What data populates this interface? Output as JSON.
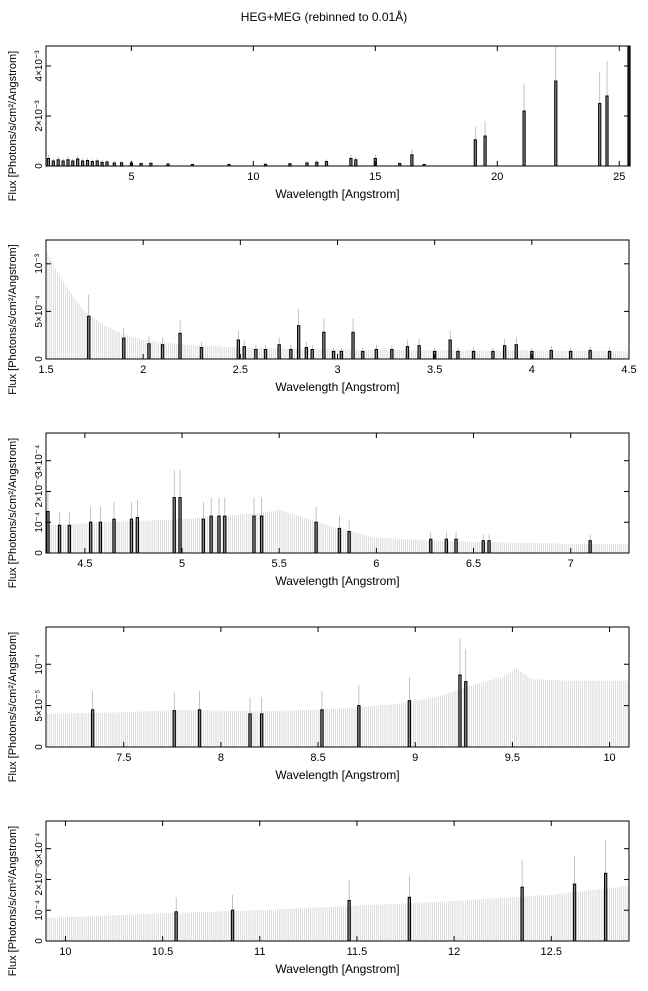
{
  "figure": {
    "title": "HEG+MEG (rebinned to 0.01Å)"
  },
  "chart_data": [
    {
      "type": "bar",
      "xlabel": "Wavelength [Angstrom]",
      "ylabel": "Flux [Photons/s/cm²/Angstrom]",
      "xlim": [
        1.5,
        25.4
      ],
      "ylim": [
        0,
        0.0048
      ],
      "xticks": [
        5,
        10,
        15,
        20,
        25
      ],
      "yticks": [
        {
          "value": 0,
          "label": "0"
        },
        {
          "value": 0.002,
          "label": "2×10⁻³"
        },
        {
          "value": 0.004,
          "label": "4×10⁻³"
        }
      ],
      "background_model": {
        "x": [
          1.5,
          25.4
        ],
        "y": [
          0.0,
          0.0
        ]
      },
      "series": [
        {
          "x": [
            1.6,
            1.8,
            2.0,
            2.2,
            2.4,
            2.6,
            2.8,
            3.0,
            3.2,
            3.4,
            3.6,
            3.8,
            4.0,
            4.3,
            4.6,
            5.0,
            5.4,
            5.8,
            6.5,
            7.5,
            9.0,
            10.5,
            11.5,
            12.2,
            12.6,
            13.0,
            14.0,
            14.2,
            15.0,
            16.0,
            16.5,
            17.0,
            19.1,
            19.5,
            21.1,
            22.4,
            24.2,
            24.5,
            25.4
          ],
          "y": [
            0.0003,
            0.0002,
            0.00025,
            0.0002,
            0.00025,
            0.0002,
            0.00028,
            0.0002,
            0.00022,
            0.00018,
            0.0002,
            0.00015,
            0.00016,
            0.00012,
            0.00013,
            0.00012,
            0.0001,
            0.00011,
            8e-05,
            6e-05,
            6e-05,
            7e-05,
            9e-05,
            0.00012,
            0.00015,
            0.00018,
            0.0003,
            0.00025,
            0.0003,
            0.0001,
            0.00045,
            6e-05,
            0.00105,
            0.0012,
            0.0022,
            0.0034,
            0.0025,
            0.0028,
            0.0048
          ]
        }
      ]
    },
    {
      "type": "bar",
      "xlabel": "Wavelength [Angstrom]",
      "ylabel": "Flux [Photons/s/cm²/Angstrom]",
      "xlim": [
        1.5,
        4.5
      ],
      "ylim": [
        0,
        0.00125
      ],
      "xticks": [
        1.5,
        2,
        2.5,
        3,
        3.5,
        4,
        4.5
      ],
      "yticks": [
        {
          "value": 0,
          "label": "0"
        },
        {
          "value": 0.0005,
          "label": "5×10⁻⁴"
        },
        {
          "value": 0.001,
          "label": "10⁻³"
        }
      ],
      "background_model": {
        "x": [
          1.5,
          1.55,
          1.6,
          1.65,
          1.7,
          1.8,
          1.9,
          2.0,
          2.2,
          2.5,
          3.0,
          3.5,
          4.0,
          4.5
        ],
        "y": [
          0.00115,
          0.00095,
          0.00078,
          0.00062,
          0.0005,
          0.00035,
          0.00026,
          0.0002,
          0.00015,
          0.00012,
          0.0001,
          9e-05,
          9e-05,
          8e-05
        ]
      },
      "series": [
        {
          "x": [
            1.72,
            1.9,
            2.03,
            2.1,
            2.19,
            2.3,
            2.49,
            2.52,
            2.58,
            2.63,
            2.7,
            2.76,
            2.8,
            2.84,
            2.87,
            2.93,
            2.98,
            3.02,
            3.08,
            3.13,
            3.2,
            3.28,
            3.36,
            3.42,
            3.5,
            3.58,
            3.62,
            3.7,
            3.8,
            3.86,
            3.92,
            4.0,
            4.1,
            4.2,
            4.3,
            4.4
          ],
          "y": [
            0.00045,
            0.00022,
            0.00016,
            0.00015,
            0.00027,
            0.00012,
            0.0002,
            0.00013,
            0.0001,
            0.0001,
            0.00015,
            0.0001,
            0.00035,
            0.00012,
            0.0001,
            0.00028,
            8e-05,
            8e-05,
            0.00028,
            8e-05,
            0.0001,
            0.0001,
            0.00013,
            0.00014,
            8e-05,
            0.0002,
            8e-05,
            8e-05,
            8e-05,
            0.00014,
            0.00015,
            8e-05,
            9e-05,
            8e-05,
            9e-05,
            8e-05
          ]
        }
      ]
    },
    {
      "type": "bar",
      "xlabel": "Wavelength [Angstrom]",
      "ylabel": "Flux [Photons/s/cm²/Angstrom]",
      "xlim": [
        4.3,
        7.3
      ],
      "ylim": [
        0,
        0.00039
      ],
      "xticks": [
        4.5,
        5,
        5.5,
        6,
        6.5,
        7
      ],
      "yticks": [
        {
          "value": 0,
          "label": "0"
        },
        {
          "value": 0.0001,
          "label": "10⁻⁴"
        },
        {
          "value": 0.0002,
          "label": "2×10⁻⁴"
        },
        {
          "value": 0.0003,
          "label": "3×10⁻⁴"
        }
      ],
      "background_model": {
        "x": [
          4.3,
          4.6,
          5.0,
          5.2,
          5.4,
          5.5,
          5.6,
          5.8,
          6.0,
          6.3,
          6.6,
          7.0,
          7.3
        ],
        "y": [
          9e-05,
          0.0001,
          0.00011,
          0.00012,
          0.00013,
          0.00014,
          0.00012,
          8e-05,
          5e-05,
          4e-05,
          3.5e-05,
          3e-05,
          3e-05
        ]
      },
      "series": [
        {
          "x": [
            4.31,
            4.37,
            4.42,
            4.53,
            4.58,
            4.65,
            4.74,
            4.77,
            4.96,
            4.99,
            5.11,
            5.15,
            5.19,
            5.22,
            5.37,
            5.41,
            5.69,
            5.81,
            5.86,
            6.28,
            6.36,
            6.41,
            6.55,
            6.58,
            7.1
          ],
          "y": [
            0.000135,
            9e-05,
            9e-05,
            0.0001,
            0.0001,
            0.00011,
            0.00011,
            0.000115,
            0.00018,
            0.00018,
            0.00011,
            0.00012,
            0.00012,
            0.00012,
            0.00012,
            0.00012,
            0.0001,
            8e-05,
            7e-05,
            4.5e-05,
            4.5e-05,
            4.5e-05,
            4e-05,
            4e-05,
            4e-05
          ]
        }
      ]
    },
    {
      "type": "bar",
      "xlabel": "Wavelength [Angstrom]",
      "ylabel": "Flux [Photons/s/cm²/Angstrom]",
      "xlim": [
        7.1,
        10.1
      ],
      "ylim": [
        0,
        0.000145
      ],
      "xticks": [
        7.5,
        8,
        8.5,
        9,
        9.5,
        10
      ],
      "yticks": [
        {
          "value": 0,
          "label": "0"
        },
        {
          "value": 5e-05,
          "label": "5×10⁻⁵"
        },
        {
          "value": 0.0001,
          "label": "10⁻⁴"
        }
      ],
      "background_model": {
        "x": [
          7.1,
          7.5,
          7.8,
          8.2,
          8.6,
          8.9,
          9.1,
          9.3,
          9.45,
          9.52,
          9.6,
          9.8,
          10.1
        ],
        "y": [
          4e-05,
          4.2e-05,
          4.5e-05,
          4.3e-05,
          4.6e-05,
          5.2e-05,
          6e-05,
          7.5e-05,
          8.5e-05,
          9.5e-05,
          8.2e-05,
          8e-05,
          8e-05
        ]
      },
      "series": [
        {
          "x": [
            7.34,
            7.76,
            7.89,
            8.15,
            8.21,
            8.52,
            8.71,
            8.97,
            9.23,
            9.26
          ],
          "y": [
            4.5e-05,
            4.4e-05,
            4.5e-05,
            4e-05,
            4e-05,
            4.5e-05,
            5e-05,
            5.6e-05,
            8.7e-05,
            7.9e-05
          ]
        }
      ]
    },
    {
      "type": "bar",
      "xlabel": "Wavelength [Angstrom]",
      "ylabel": "Flux [Photons/s/cm²/Angstrom]",
      "xlim": [
        9.9,
        12.9
      ],
      "ylim": [
        0,
        0.00039
      ],
      "xticks": [
        10,
        10.5,
        11,
        11.5,
        12,
        12.5
      ],
      "yticks": [
        {
          "value": 0,
          "label": "0"
        },
        {
          "value": 0.0001,
          "label": "10⁻⁴"
        },
        {
          "value": 0.0002,
          "label": "2×10⁻⁴"
        },
        {
          "value": 0.0003,
          "label": "3×10⁻⁴"
        }
      ],
      "background_model": {
        "x": [
          9.9,
          10.5,
          11.0,
          11.5,
          12.0,
          12.5,
          12.9
        ],
        "y": [
          7.5e-05,
          9e-05,
          0.0001,
          0.000115,
          0.00013,
          0.00015,
          0.00018
        ]
      },
      "series": [
        {
          "x": [
            10.57,
            10.86,
            11.46,
            11.77,
            12.35,
            12.62,
            12.78
          ],
          "y": [
            9.5e-05,
            0.0001,
            0.000132,
            0.000142,
            0.000175,
            0.000185,
            0.00022
          ]
        }
      ]
    }
  ]
}
